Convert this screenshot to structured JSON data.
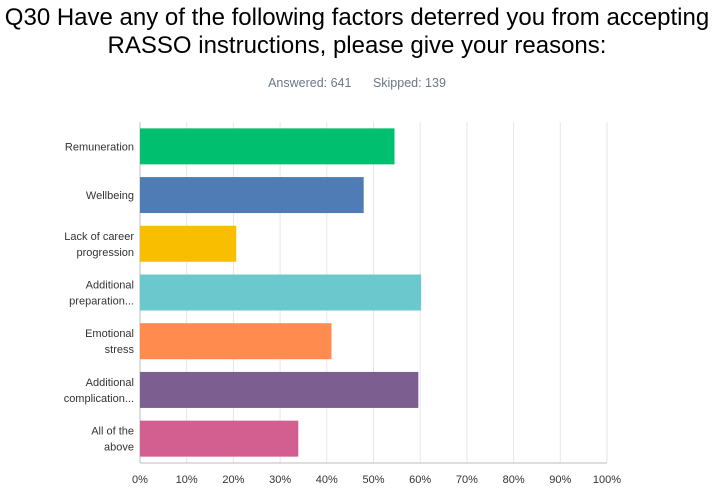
{
  "title_line1": "Q30 Have any of the following factors deterred you from accepting",
  "title_line2": "RASSO instructions, please give your reasons:",
  "stats": {
    "answered": "Answered: 641",
    "skipped": "Skipped: 139"
  },
  "chart_data": {
    "type": "bar",
    "orientation": "horizontal",
    "categories": [
      [
        "Remuneration"
      ],
      [
        "Wellbeing"
      ],
      [
        "Lack of career",
        "progression"
      ],
      [
        "Additional",
        "preparation..."
      ],
      [
        "Emotional",
        "stress"
      ],
      [
        "Additional",
        "complication..."
      ],
      [
        "All of the",
        "above"
      ]
    ],
    "values": [
      54.5,
      47.9,
      20.6,
      60.2,
      41.0,
      59.6,
      33.9
    ],
    "colors": [
      "#00bf6f",
      "#507cb6",
      "#f9be00",
      "#6bc8cd",
      "#ff8b4f",
      "#7d5e90",
      "#d25f90"
    ],
    "xlim": [
      0,
      100
    ],
    "ticks": [
      "0%",
      "10%",
      "20%",
      "30%",
      "40%",
      "50%",
      "60%",
      "70%",
      "80%",
      "90%",
      "100%"
    ],
    "grid": true
  }
}
